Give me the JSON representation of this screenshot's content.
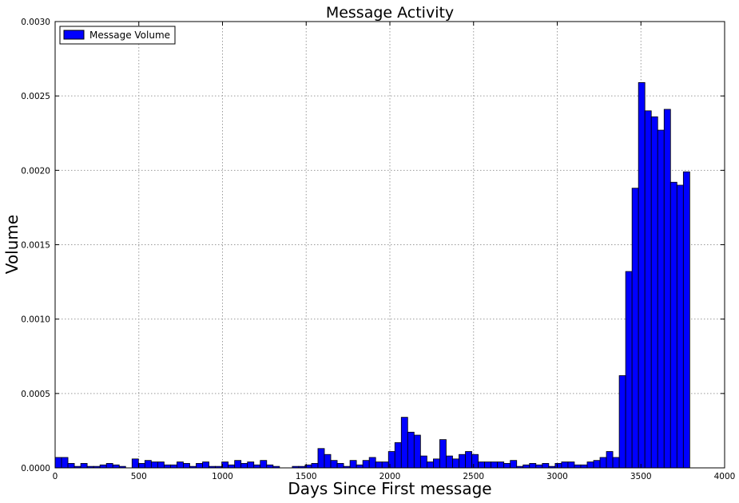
{
  "chart_data": {
    "type": "bar",
    "title": "Message Activity",
    "xlabel": "Days Since First message",
    "ylabel": "Volume",
    "xlim": [
      0,
      4000
    ],
    "ylim": [
      0,
      0.003
    ],
    "xticks": [
      0,
      500,
      1000,
      1500,
      2000,
      2500,
      3000,
      3500,
      4000
    ],
    "xtick_labels": [
      "0",
      "500",
      "1000",
      "1500",
      "2000",
      "2500",
      "3000",
      "3500",
      "4000"
    ],
    "yticks": [
      0,
      0.0005,
      0.001,
      0.0015,
      0.002,
      0.0025,
      0.003
    ],
    "ytick_labels": [
      "0.0000",
      "0.0005",
      "0.0010",
      "0.0015",
      "0.0020",
      "0.0025",
      "0.0030"
    ],
    "grid": true,
    "legend_position": "top-left",
    "bin_start": 0,
    "bin_width": 38.3,
    "series": [
      {
        "name": "Message Volume",
        "color": "#0000ff",
        "values": [
          7e-05,
          7e-05,
          3e-05,
          1e-05,
          3e-05,
          1e-05,
          1e-05,
          2e-05,
          3e-05,
          2e-05,
          1e-05,
          0.0,
          6e-05,
          3e-05,
          5e-05,
          4e-05,
          4e-05,
          2e-05,
          2e-05,
          4e-05,
          3e-05,
          1e-05,
          3e-05,
          4e-05,
          1e-05,
          1e-05,
          4e-05,
          2e-05,
          5e-05,
          3e-05,
          4e-05,
          2e-05,
          5e-05,
          2e-05,
          1e-05,
          0.0,
          0.0,
          1e-05,
          1e-05,
          2e-05,
          3e-05,
          0.00013,
          9e-05,
          5e-05,
          3e-05,
          1e-05,
          5e-05,
          2e-05,
          5e-05,
          7e-05,
          4e-05,
          4e-05,
          0.00011,
          0.00017,
          0.00034,
          0.00024,
          0.00022,
          8e-05,
          4e-05,
          6e-05,
          0.00019,
          8e-05,
          6e-05,
          9e-05,
          0.00011,
          9e-05,
          4e-05,
          4e-05,
          4e-05,
          4e-05,
          3e-05,
          5e-05,
          1e-05,
          2e-05,
          3e-05,
          2e-05,
          3e-05,
          1e-05,
          3e-05,
          4e-05,
          4e-05,
          2e-05,
          2e-05,
          4e-05,
          5e-05,
          7e-05,
          0.00011,
          7e-05,
          0.00062,
          0.00132,
          0.00188,
          0.00259,
          0.0024,
          0.00236,
          0.00227,
          0.00241,
          0.00192,
          0.0019,
          0.00199
        ]
      }
    ]
  }
}
